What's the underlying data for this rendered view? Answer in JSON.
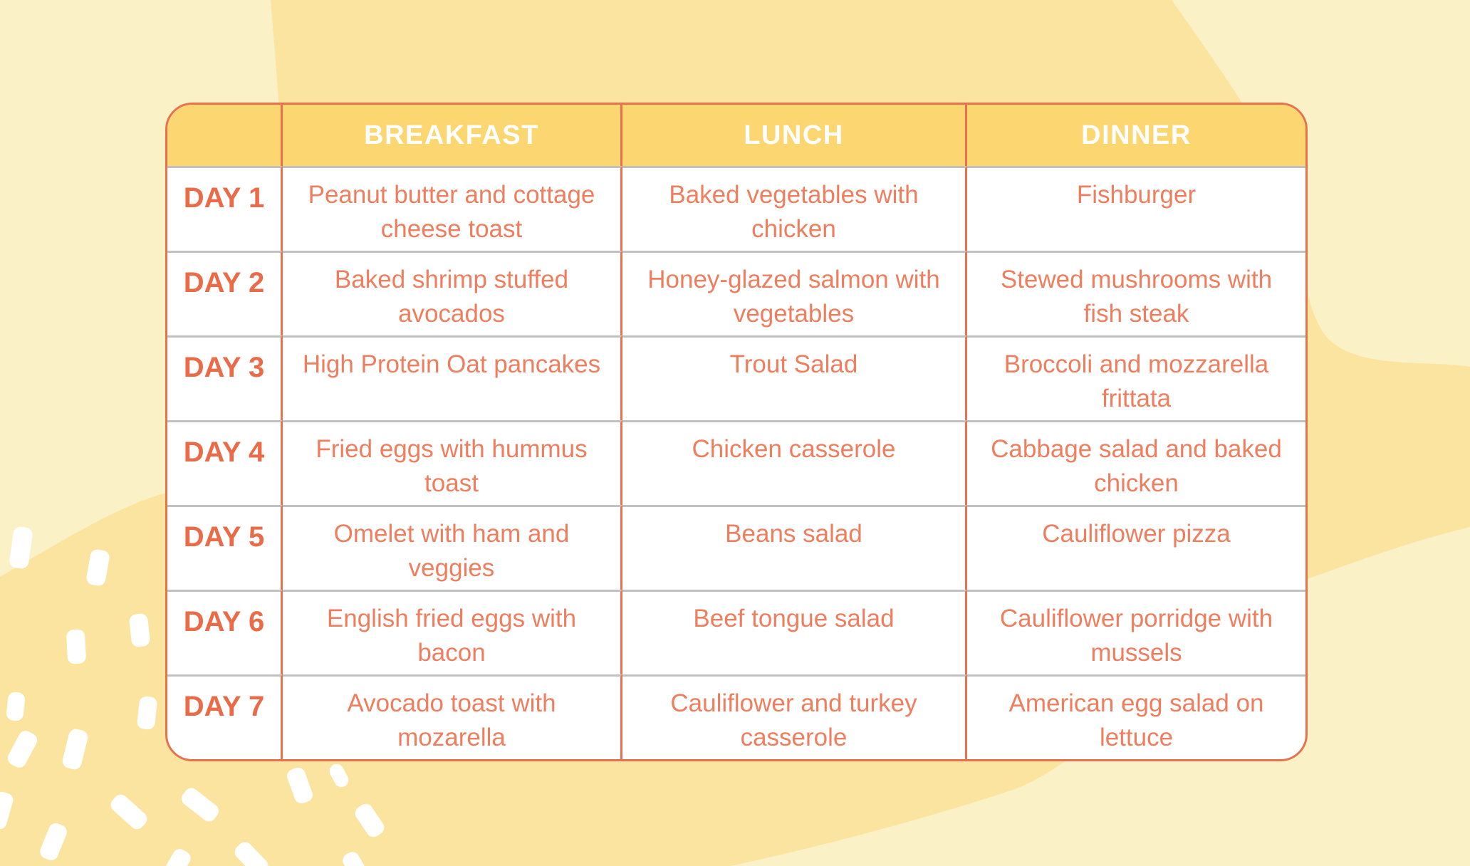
{
  "meal_plan": {
    "column_headers": {
      "day": "",
      "breakfast": "BREAKFAST",
      "lunch": "LUNCH",
      "dinner": "DINNER"
    },
    "days": [
      {
        "label": "DAY 1",
        "breakfast": "Peanut butter and cottage cheese toast",
        "lunch": "Baked vegetables with chicken",
        "dinner": "Fishburger"
      },
      {
        "label": "DAY 2",
        "breakfast": "Baked shrimp stuffed avocados",
        "lunch": "Honey-glazed salmon with vegetables",
        "dinner": "Stewed mushrooms with fish steak"
      },
      {
        "label": "DAY 3",
        "breakfast": "High Protein Oat pancakes",
        "lunch": "Trout Salad",
        "dinner": "Broccoli and mozzarella frittata"
      },
      {
        "label": "DAY 4",
        "breakfast": "Fried eggs with hummus toast",
        "lunch": "Chicken casserole",
        "dinner": "Cabbage salad and baked chicken"
      },
      {
        "label": "DAY 5",
        "breakfast": "Omelet with ham and veggies",
        "lunch": "Beans salad",
        "dinner": "Cauliflower pizza"
      },
      {
        "label": "DAY 6",
        "breakfast": "English fried eggs with bacon",
        "lunch": "Beef tongue salad",
        "dinner": "Cauliflower porridge with mussels"
      },
      {
        "label": "DAY 7",
        "breakfast": "Avocado toast with mozarella",
        "lunch": "Cauliflower and turkey casserole",
        "dinner": "American egg salad on lettuce"
      }
    ]
  },
  "colors": {
    "background_base": "#FAF1C6",
    "background_blob": "#FBE3A0",
    "header_background": "#FCD671",
    "table_border": "#E8714E",
    "row_divider": "#C1C1C1",
    "day_text": "#EA6B47",
    "cell_text": "#EF7E5E",
    "header_text": "#FFFFFF",
    "confetti": "#FFFFFF"
  }
}
